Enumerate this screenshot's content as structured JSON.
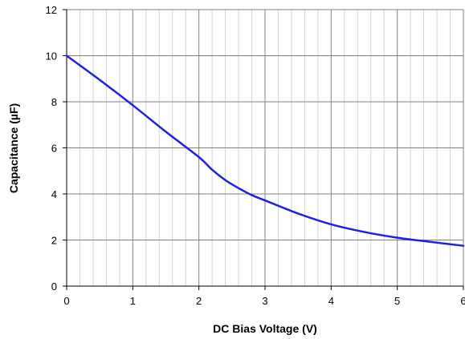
{
  "chart_data": {
    "type": "line",
    "title": "",
    "xlabel": "DC Bias Voltage (V)",
    "ylabel": "Capacitance (µF)",
    "xlim": [
      0,
      6
    ],
    "ylim": [
      0,
      12
    ],
    "x_ticks": [
      "0",
      "1",
      "2",
      "3",
      "4",
      "5",
      "6"
    ],
    "y_ticks": [
      "0",
      "2",
      "4",
      "6",
      "8",
      "10",
      "12"
    ],
    "x_minor_step": 0.2,
    "grid": true,
    "legend": "none",
    "series": [
      {
        "color": "#1f1fe6",
        "x": [
          0,
          0.5,
          1,
          1.5,
          2,
          2.2,
          2.4,
          2.6,
          2.8,
          3,
          3.5,
          4,
          4.5,
          5,
          5.5,
          6
        ],
        "y": [
          10,
          8.95,
          7.85,
          6.7,
          5.6,
          5.05,
          4.6,
          4.25,
          3.95,
          3.72,
          3.15,
          2.68,
          2.35,
          2.1,
          1.92,
          1.75
        ]
      }
    ]
  }
}
